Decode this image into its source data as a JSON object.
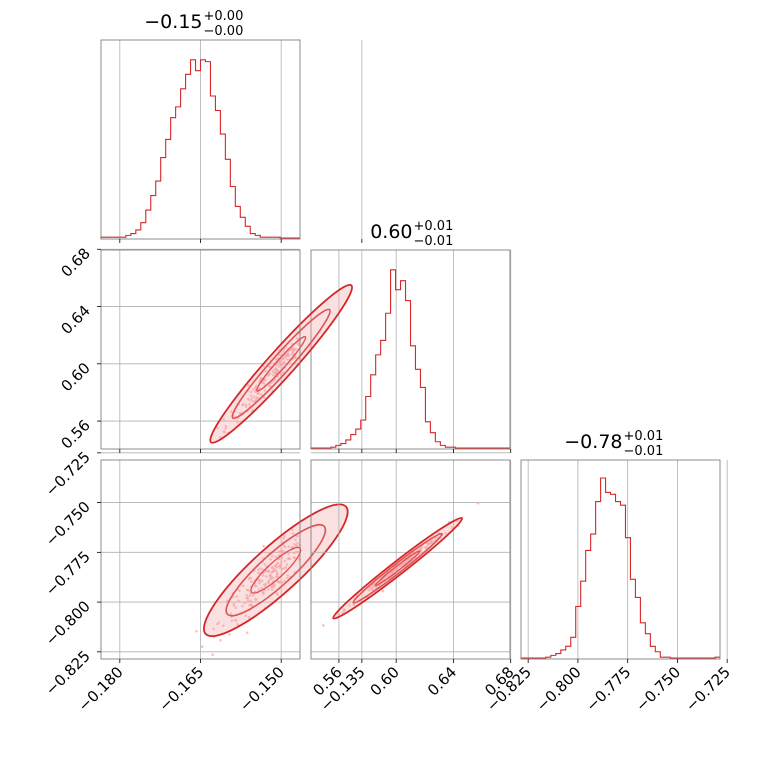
{
  "chart_data": {
    "type": "corner",
    "colors": {
      "series": "#d62728",
      "points": "#f4a6a8",
      "grid": "#b0b0b0",
      "frame": "#808080"
    },
    "grid": true,
    "parameters": [
      {
        "title": {
          "value": "−0.15",
          "upper": "+0.00",
          "lower": "−0.00"
        },
        "range": [
          -0.1835,
          -0.1465
        ],
        "ticks": [
          -0.18,
          -0.165,
          -0.15,
          -0.135
        ],
        "tick_labels": [
          "−0.180",
          "−0.165",
          "−0.150",
          "−0.135"
        ],
        "histogram": [
          0.01,
          0.01,
          0.01,
          0.01,
          0.01,
          0.02,
          0.03,
          0.05,
          0.09,
          0.16,
          0.24,
          0.32,
          0.45,
          0.55,
          0.67,
          0.73,
          0.83,
          0.91,
          0.99,
          0.93,
          0.99,
          0.98,
          0.79,
          0.71,
          0.58,
          0.44,
          0.29,
          0.18,
          0.12,
          0.07,
          0.03,
          0.02,
          0.01,
          0.01,
          0.01,
          0.01,
          0.005,
          0.005,
          0.005,
          0.005
        ]
      },
      {
        "title": {
          "value": "0.60",
          "upper": "+0.01",
          "lower": "−0.01"
        },
        "range": [
          0.5405,
          0.6795
        ],
        "ticks": [
          0.56,
          0.6,
          0.64,
          0.68
        ],
        "tick_labels": [
          "0.56",
          "0.60",
          "0.64",
          "0.68"
        ],
        "histogram": [
          0.005,
          0.005,
          0.005,
          0.005,
          0.01,
          0.02,
          0.03,
          0.05,
          0.08,
          0.11,
          0.16,
          0.29,
          0.41,
          0.52,
          0.6,
          0.75,
          0.99,
          0.88,
          0.93,
          0.82,
          0.57,
          0.44,
          0.34,
          0.15,
          0.09,
          0.04,
          0.02,
          0.01,
          0.01,
          0.005,
          0.005,
          0.005,
          0.005,
          0.005,
          0.005,
          0.005,
          0.005,
          0.005,
          0.005,
          0.005
        ]
      },
      {
        "title": {
          "value": "−0.78",
          "upper": "+0.01",
          "lower": "−0.01"
        },
        "range": [
          -0.8286,
          -0.7286
        ],
        "ticks": [
          -0.825,
          -0.8,
          -0.775,
          -0.75,
          -0.725
        ],
        "tick_labels": [
          "−0.825",
          "−0.800",
          "−0.775",
          "−0.750",
          "−0.725"
        ],
        "histogram": [
          0.005,
          0.005,
          0.005,
          0.005,
          0.005,
          0.01,
          0.02,
          0.03,
          0.05,
          0.07,
          0.12,
          0.29,
          0.43,
          0.6,
          0.69,
          0.87,
          1.0,
          0.92,
          0.91,
          0.87,
          0.85,
          0.67,
          0.44,
          0.34,
          0.2,
          0.14,
          0.07,
          0.04,
          0.01,
          0.01,
          0.005,
          0.005,
          0.005,
          0.005,
          0.005,
          0.005,
          0.005,
          0.005,
          0.005,
          0.01
        ]
      }
    ],
    "pairs": [
      {
        "x_param": 0,
        "y_param": 1,
        "center": [
          -0.15,
          0.6
        ],
        "sigma_x": 0.0045,
        "slope": 4.2,
        "perp": 0.004,
        "n_points": 260
      },
      {
        "x_param": 0,
        "y_param": 2,
        "center": [
          -0.151,
          -0.784
        ],
        "sigma_x": 0.0045,
        "slope": 2.45,
        "perp": 0.0045,
        "n_points": 260
      },
      {
        "x_param": 1,
        "y_param": 2,
        "center": [
          0.601,
          -0.783
        ],
        "sigma_x": 0.0155,
        "slope": 0.56,
        "perp": 0.0012,
        "n_points": 180
      }
    ]
  }
}
